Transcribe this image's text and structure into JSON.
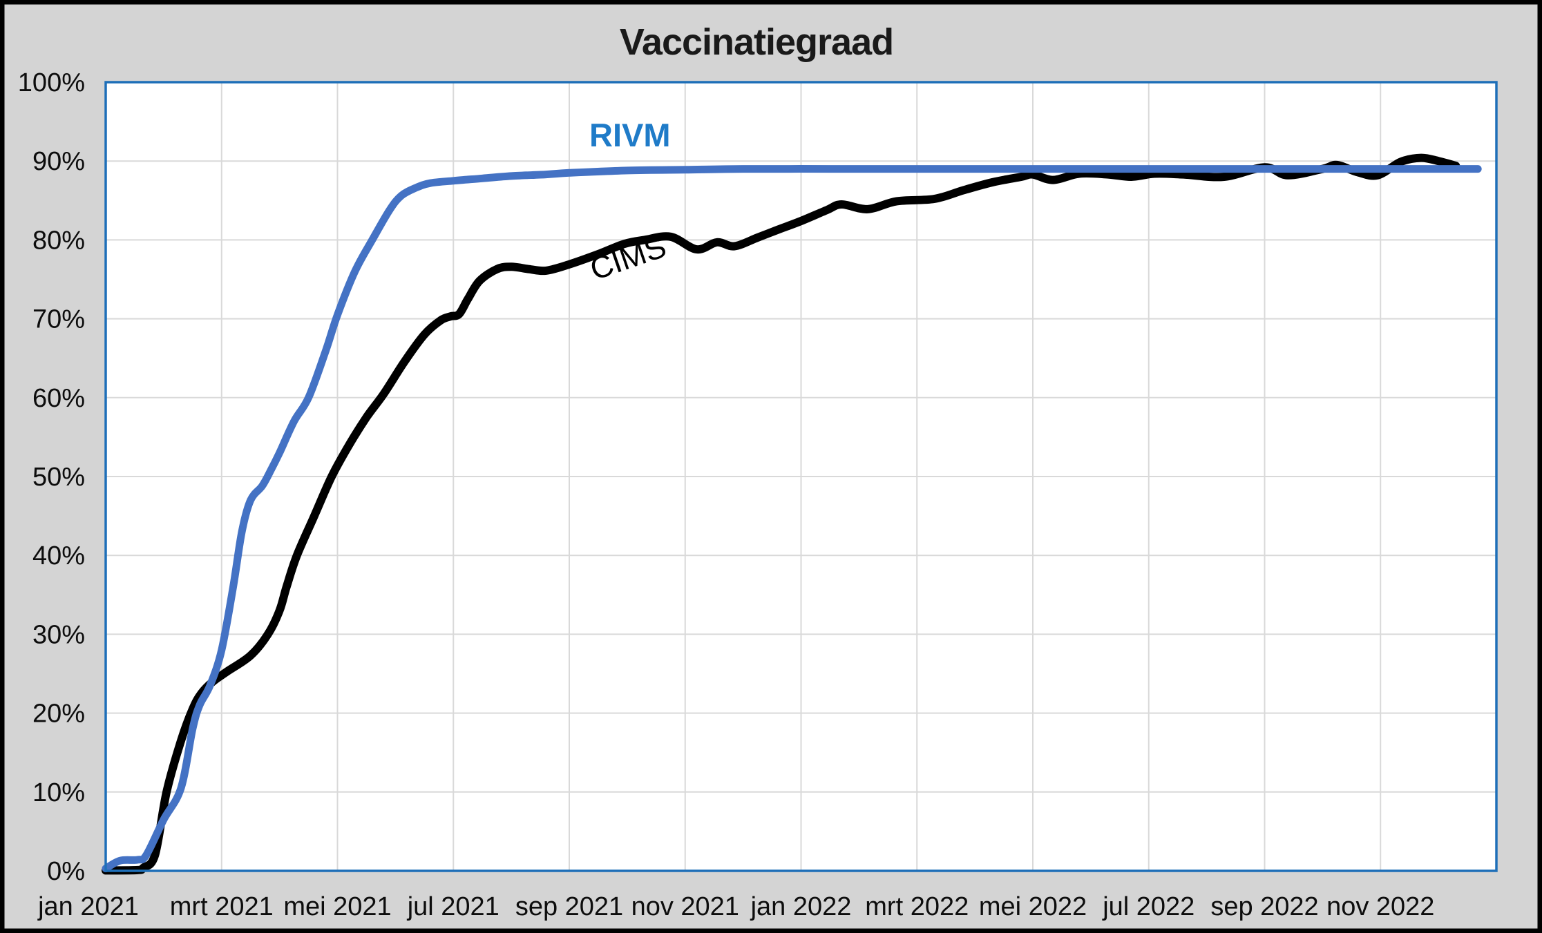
{
  "title": "Vaccinatiegraad",
  "series_labels": {
    "rivm": "RIVM",
    "cims": "CIMS"
  },
  "colors": {
    "canvas_background": "#d4d4d4",
    "frame_border": "#000000",
    "plot_background": "#ffffff",
    "plot_border": "#1e6fb8",
    "gridline": "#d9d9d9",
    "rivm_line": "#4472c4",
    "rivm_label": "#1f7bc8",
    "cims_line": "#000000",
    "tick_text": "#0d0d0d",
    "title_text": "#1a1a1a"
  },
  "chart_data": {
    "type": "line",
    "title": "Vaccinatiegraad",
    "xlabel": "",
    "ylabel": "",
    "x_unit": "months since jan 2021 (0 = jan 2021)",
    "xlim": [
      0,
      24
    ],
    "ylim": [
      0,
      100
    ],
    "grid": true,
    "y_ticks": [
      {
        "v": 0,
        "label": "0%"
      },
      {
        "v": 10,
        "label": "10%"
      },
      {
        "v": 20,
        "label": "20%"
      },
      {
        "v": 30,
        "label": "30%"
      },
      {
        "v": 40,
        "label": "40%"
      },
      {
        "v": 50,
        "label": "50%"
      },
      {
        "v": 60,
        "label": "60%"
      },
      {
        "v": 70,
        "label": "70%"
      },
      {
        "v": 80,
        "label": "80%"
      },
      {
        "v": 90,
        "label": "90%"
      },
      {
        "v": 100,
        "label": "100%"
      }
    ],
    "x_ticks": [
      {
        "m": 0,
        "label": "jan 2021"
      },
      {
        "m": 2,
        "label": "mrt 2021"
      },
      {
        "m": 4,
        "label": "mei 2021"
      },
      {
        "m": 6,
        "label": "jul 2021"
      },
      {
        "m": 8,
        "label": "sep 2021"
      },
      {
        "m": 10,
        "label": "nov 2021"
      },
      {
        "m": 12,
        "label": "jan 2022"
      },
      {
        "m": 14,
        "label": "mrt 2022"
      },
      {
        "m": 16,
        "label": "mei 2022"
      },
      {
        "m": 18,
        "label": "jul 2022"
      },
      {
        "m": 20,
        "label": "sep 2022"
      },
      {
        "m": 22,
        "label": "nov 2022"
      }
    ],
    "gridline_months_step": 2,
    "series": [
      {
        "name": "CIMS",
        "color": "#000000",
        "stroke_width": 12,
        "points": [
          [
            0,
            0.05
          ],
          [
            0.55,
            0.1
          ],
          [
            0.65,
            0.4
          ],
          [
            0.85,
            2
          ],
          [
            1.05,
            10
          ],
          [
            1.3,
            16.5
          ],
          [
            1.5,
            20.5
          ],
          [
            1.65,
            22.5
          ],
          [
            1.85,
            24
          ],
          [
            2.1,
            25.3
          ],
          [
            2.5,
            27.3
          ],
          [
            2.8,
            30
          ],
          [
            3.0,
            33
          ],
          [
            3.12,
            36
          ],
          [
            3.3,
            40
          ],
          [
            3.6,
            45
          ],
          [
            3.9,
            50
          ],
          [
            4.2,
            54
          ],
          [
            4.5,
            57.5
          ],
          [
            4.8,
            60.5
          ],
          [
            5.15,
            64.5
          ],
          [
            5.5,
            68
          ],
          [
            5.78,
            69.8
          ],
          [
            5.95,
            70.3
          ],
          [
            6.1,
            70.6
          ],
          [
            6.25,
            72.5
          ],
          [
            6.45,
            74.8
          ],
          [
            6.75,
            76.3
          ],
          [
            7.0,
            76.6
          ],
          [
            7.3,
            76.3
          ],
          [
            7.6,
            76.1
          ],
          [
            8.0,
            76.9
          ],
          [
            8.5,
            78.2
          ],
          [
            8.95,
            79.5
          ],
          [
            9.3,
            80.0
          ],
          [
            9.75,
            80.4
          ],
          [
            10.2,
            78.8
          ],
          [
            10.55,
            79.7
          ],
          [
            10.85,
            79.2
          ],
          [
            11.25,
            80.3
          ],
          [
            11.6,
            81.3
          ],
          [
            12.0,
            82.4
          ],
          [
            12.45,
            83.8
          ],
          [
            12.7,
            84.5
          ],
          [
            13.15,
            83.9
          ],
          [
            13.65,
            84.9
          ],
          [
            14.3,
            85.2
          ],
          [
            14.8,
            86.3
          ],
          [
            15.3,
            87.3
          ],
          [
            15.8,
            88.0
          ],
          [
            16.0,
            88.3
          ],
          [
            16.35,
            87.6
          ],
          [
            16.8,
            88.4
          ],
          [
            17.3,
            88.3
          ],
          [
            17.7,
            88.0
          ],
          [
            18.1,
            88.4
          ],
          [
            18.6,
            88.3
          ],
          [
            19.3,
            88.0
          ],
          [
            20.0,
            89.2
          ],
          [
            20.4,
            88.2
          ],
          [
            21.0,
            89.0
          ],
          [
            21.25,
            89.5
          ],
          [
            21.6,
            88.6
          ],
          [
            21.95,
            88.2
          ],
          [
            22.35,
            89.9
          ],
          [
            22.7,
            90.4
          ],
          [
            23.0,
            90.0
          ],
          [
            23.3,
            89.4
          ]
        ]
      },
      {
        "name": "RIVM",
        "color": "#4472c4",
        "stroke_width": 11,
        "points": [
          [
            0,
            0.3
          ],
          [
            0.25,
            1.3
          ],
          [
            0.55,
            1.4
          ],
          [
            0.7,
            2
          ],
          [
            1.0,
            6.5
          ],
          [
            1.3,
            10.5
          ],
          [
            1.5,
            18
          ],
          [
            1.62,
            21
          ],
          [
            1.8,
            23.5
          ],
          [
            2.0,
            28
          ],
          [
            2.2,
            36
          ],
          [
            2.35,
            43
          ],
          [
            2.5,
            47
          ],
          [
            2.7,
            48.8
          ],
          [
            2.85,
            50.8
          ],
          [
            3.0,
            53
          ],
          [
            3.25,
            57
          ],
          [
            3.5,
            60
          ],
          [
            3.8,
            66
          ],
          [
            4.0,
            70.5
          ],
          [
            4.3,
            76
          ],
          [
            4.6,
            80
          ],
          [
            4.9,
            83.8
          ],
          [
            5.1,
            85.6
          ],
          [
            5.35,
            86.6
          ],
          [
            5.6,
            87.2
          ],
          [
            6.0,
            87.5
          ],
          [
            6.5,
            87.8
          ],
          [
            7.0,
            88.1
          ],
          [
            7.6,
            88.3
          ],
          [
            8.0,
            88.5
          ],
          [
            9.0,
            88.8
          ],
          [
            10.0,
            88.9
          ],
          [
            11.0,
            89.0
          ],
          [
            12.5,
            89.0
          ],
          [
            14,
            89.0
          ],
          [
            16,
            89.0
          ],
          [
            18,
            89.0
          ],
          [
            20,
            89.0
          ],
          [
            22,
            89.0
          ],
          [
            23.0,
            89.0
          ],
          [
            23.68,
            89.0
          ]
        ]
      }
    ],
    "annotations": [
      {
        "text": "RIVM",
        "attached_series": "RIVM",
        "approx_position": "above blue line, aug 2021"
      },
      {
        "text": "CIMS",
        "attached_series": "CIMS",
        "approx_position": "below black line, sep-oct 2021, rotated"
      }
    ]
  }
}
